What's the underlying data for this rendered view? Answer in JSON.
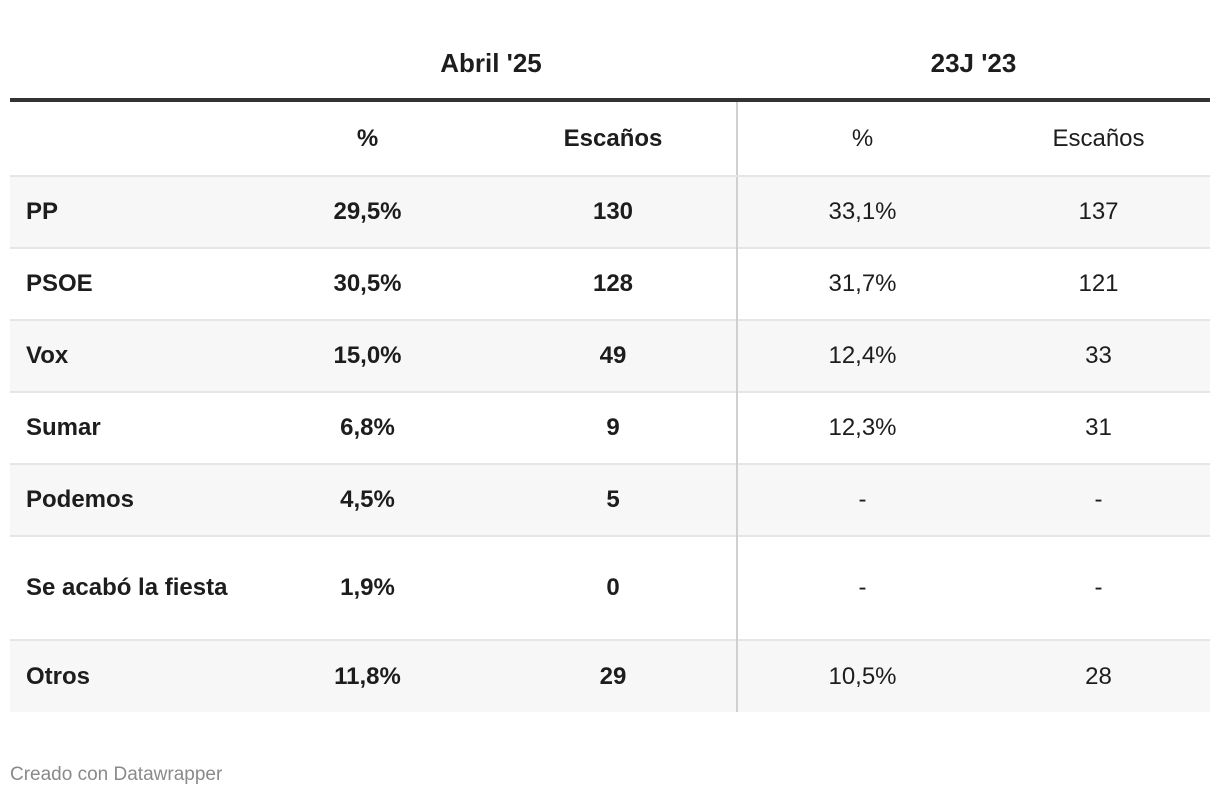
{
  "chart_data": {
    "type": "table",
    "column_groups": [
      "Abril '25",
      "23J '23"
    ],
    "columns": [
      "%",
      "Escaños",
      "%",
      "Escaños"
    ],
    "rows": [
      {
        "party": "PP",
        "abril_pct": "29,5%",
        "abril_seats": "130",
        "j23_pct": "33,1%",
        "j23_seats": "137"
      },
      {
        "party": "PSOE",
        "abril_pct": "30,5%",
        "abril_seats": "128",
        "j23_pct": "31,7%",
        "j23_seats": "121"
      },
      {
        "party": "Vox",
        "abril_pct": "15,0%",
        "abril_seats": "49",
        "j23_pct": "12,4%",
        "j23_seats": "33"
      },
      {
        "party": "Sumar",
        "abril_pct": "6,8%",
        "abril_seats": "9",
        "j23_pct": "12,3%",
        "j23_seats": "31"
      },
      {
        "party": "Podemos",
        "abril_pct": "4,5%",
        "abril_seats": "5",
        "j23_pct": "-",
        "j23_seats": "-"
      },
      {
        "party": "Se acabó la fiesta",
        "abril_pct": "1,9%",
        "abril_seats": "0",
        "j23_pct": "-",
        "j23_seats": "-"
      },
      {
        "party": "Otros",
        "abril_pct": "11,8%",
        "abril_seats": "29",
        "j23_pct": "10,5%",
        "j23_seats": "28"
      }
    ]
  },
  "footer": "Creado con Datawrapper",
  "colors": {
    "text": "#1d1d1d",
    "row_alt": "#f7f7f7",
    "header_rule": "#333333",
    "footer": "#8a8a8a"
  }
}
